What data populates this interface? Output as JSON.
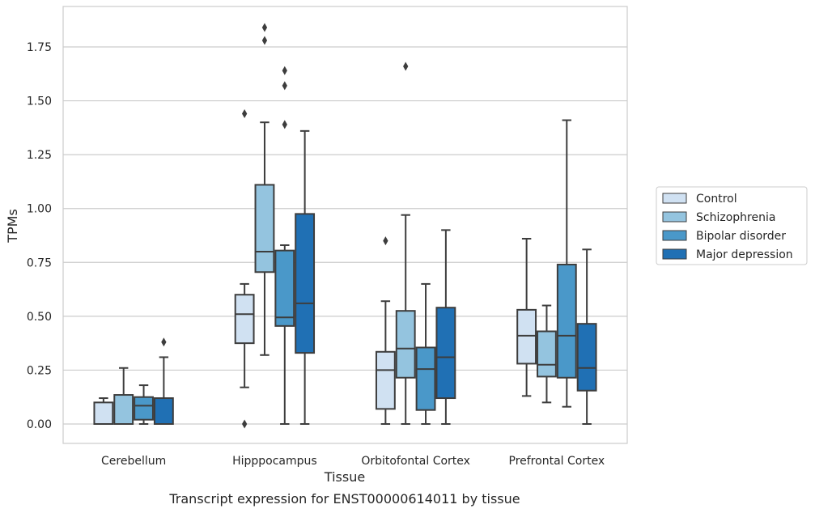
{
  "chart_data": {
    "type": "box",
    "caption": "Transcript expression for ENST00000614011 by tissue",
    "xlabel": "Tissue",
    "ylabel": "TPMs",
    "ylim": [
      -0.09,
      1.94
    ],
    "yticks": [
      "0.00",
      "0.25",
      "0.50",
      "0.75",
      "1.00",
      "1.25",
      "1.50",
      "1.75"
    ],
    "ytick_values": [
      0,
      0.25,
      0.5,
      0.75,
      1.0,
      1.25,
      1.5,
      1.75
    ],
    "grid": true,
    "legend_position": "right",
    "categories": [
      "Cerebellum",
      "Hipppocampus",
      "Orbitofontal Cortex",
      "Prefrontal Cortex"
    ],
    "series": [
      {
        "name": "Control",
        "color": "#d0e1f2",
        "boxes": [
          {
            "whislo": 0.0,
            "q1": 0.0,
            "med": 0.0,
            "q3": 0.1,
            "whishi": 0.12,
            "fliers": []
          },
          {
            "whislo": 0.17,
            "q1": 0.375,
            "med": 0.51,
            "q3": 0.6,
            "whishi": 0.65,
            "fliers": [
              0.0,
              1.44
            ]
          },
          {
            "whislo": 0.0,
            "q1": 0.07,
            "med": 0.25,
            "q3": 0.335,
            "whishi": 0.57,
            "fliers": [
              0.85
            ]
          },
          {
            "whislo": 0.13,
            "q1": 0.28,
            "med": 0.41,
            "q3": 0.53,
            "whishi": 0.86,
            "fliers": []
          }
        ]
      },
      {
        "name": "Schizophrenia",
        "color": "#94c4df",
        "boxes": [
          {
            "whislo": 0.0,
            "q1": 0.0,
            "med": 0.0,
            "q3": 0.135,
            "whishi": 0.26,
            "fliers": []
          },
          {
            "whislo": 0.32,
            "q1": 0.705,
            "med": 0.8,
            "q3": 1.11,
            "whishi": 1.4,
            "fliers": [
              1.78,
              1.84
            ]
          },
          {
            "whislo": 0.0,
            "q1": 0.215,
            "med": 0.35,
            "q3": 0.525,
            "whishi": 0.97,
            "fliers": [
              1.66
            ]
          },
          {
            "whislo": 0.1,
            "q1": 0.22,
            "med": 0.275,
            "q3": 0.43,
            "whishi": 0.55,
            "fliers": []
          }
        ]
      },
      {
        "name": "Bipolar disorder",
        "color": "#4a98c9",
        "boxes": [
          {
            "whislo": 0.0,
            "q1": 0.02,
            "med": 0.085,
            "q3": 0.125,
            "whishi": 0.18,
            "fliers": []
          },
          {
            "whislo": 0.0,
            "q1": 0.455,
            "med": 0.495,
            "q3": 0.805,
            "whishi": 0.83,
            "fliers": [
              1.39,
              1.57,
              1.64
            ]
          },
          {
            "whislo": 0.0,
            "q1": 0.065,
            "med": 0.255,
            "q3": 0.355,
            "whishi": 0.65,
            "fliers": []
          },
          {
            "whislo": 0.08,
            "q1": 0.215,
            "med": 0.41,
            "q3": 0.74,
            "whishi": 1.41,
            "fliers": []
          }
        ]
      },
      {
        "name": "Major depression",
        "color": "#2070b4",
        "boxes": [
          {
            "whislo": 0.0,
            "q1": 0.0,
            "med": 0.0,
            "q3": 0.12,
            "whishi": 0.31,
            "fliers": [
              0.38
            ]
          },
          {
            "whislo": 0.0,
            "q1": 0.33,
            "med": 0.56,
            "q3": 0.975,
            "whishi": 1.36,
            "fliers": []
          },
          {
            "whislo": 0.0,
            "q1": 0.12,
            "med": 0.31,
            "q3": 0.54,
            "whishi": 0.9,
            "fliers": []
          },
          {
            "whislo": 0.0,
            "q1": 0.155,
            "med": 0.26,
            "q3": 0.465,
            "whishi": 0.81,
            "fliers": []
          }
        ]
      }
    ]
  }
}
